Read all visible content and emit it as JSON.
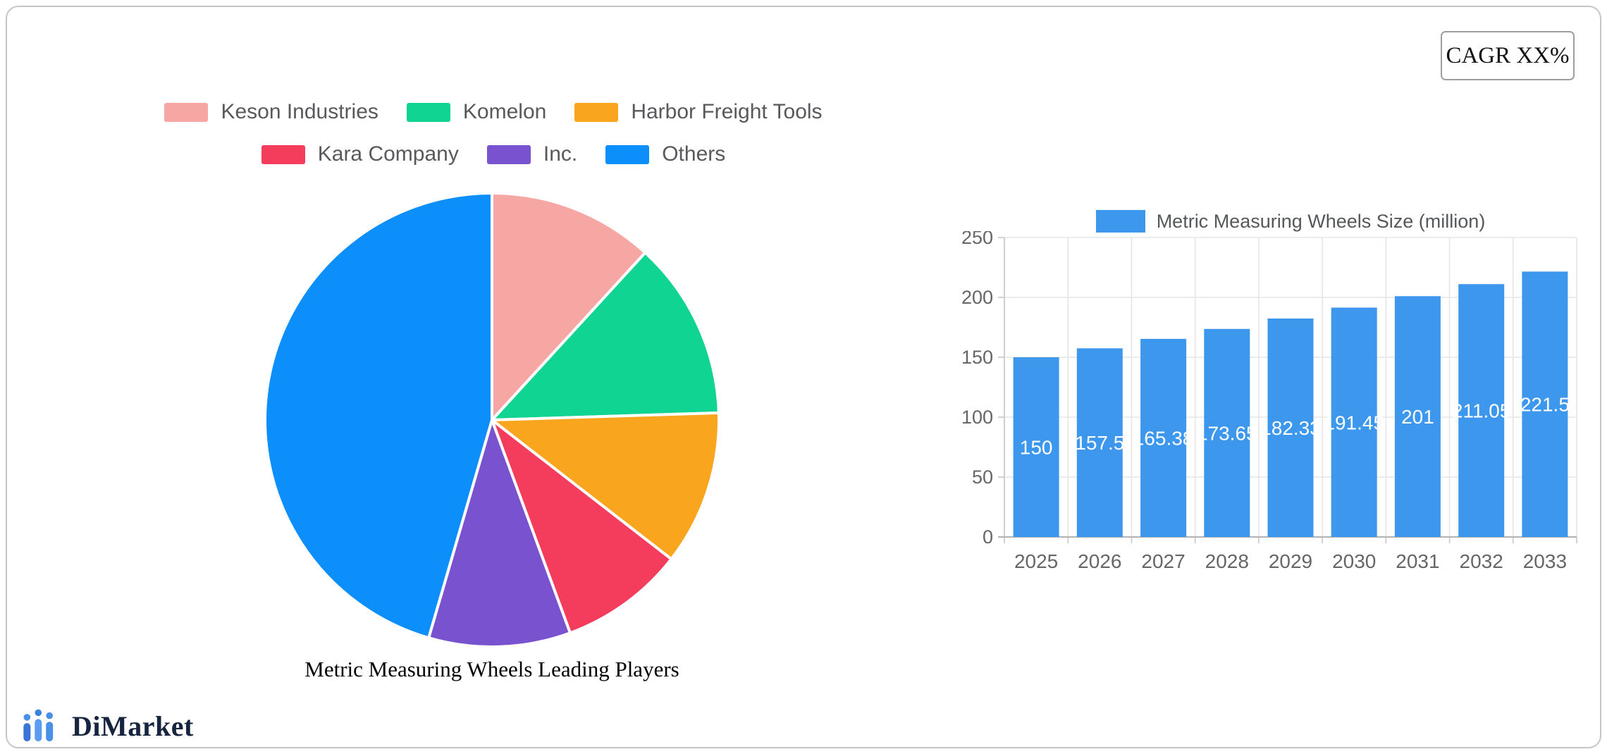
{
  "page": {
    "cagr_label": "CAGR XX%",
    "brand": "DiMarket"
  },
  "colors": {
    "bar_blue": "#3D97EC",
    "axis_text": "#666666",
    "legend_text": "#58595c",
    "grid_line": "#e6e6e6",
    "axis_line": "#b3b3b3",
    "brand_navy": "#17243f",
    "brand_blue": "#4a90e8"
  },
  "chart_data": [
    {
      "type": "pie",
      "title": "Metric Measuring Wheels Leading Players",
      "legend_position": "top",
      "labels": [
        "Keson Industries",
        "Komelon",
        "Harbor Freight Tools",
        "Kara Company",
        "Inc.",
        "Others"
      ],
      "values": [
        11.8,
        12.7,
        11.0,
        8.9,
        10.1,
        45.5
      ],
      "colors": [
        "#F6A6A3",
        "#10D592",
        "#F9A51D",
        "#F43C5C",
        "#7953CF",
        "#0C8FFA"
      ],
      "start_angle_deg": -90,
      "direction": "clockwise",
      "slice_border_color": "#ffffff"
    },
    {
      "type": "bar",
      "legend": "Metric Measuring Wheels Size (million)",
      "categories": [
        "2025",
        "2026",
        "2027",
        "2028",
        "2029",
        "2030",
        "2031",
        "2032",
        "2033"
      ],
      "values": [
        150,
        157.5,
        165.38,
        173.65,
        182.33,
        191.45,
        201,
        211.05,
        221.5
      ],
      "value_labels": [
        "150",
        "157.5",
        "165.38",
        "173.65",
        "182.33",
        "191.45",
        "201",
        "211.05",
        "221.5"
      ],
      "ylim": [
        0,
        250
      ],
      "yticks": [
        0,
        50,
        100,
        150,
        200,
        250
      ],
      "bar_color": "#3D97EC",
      "value_label_color": "#ffffff",
      "grid": true,
      "legend_position": "top"
    }
  ]
}
